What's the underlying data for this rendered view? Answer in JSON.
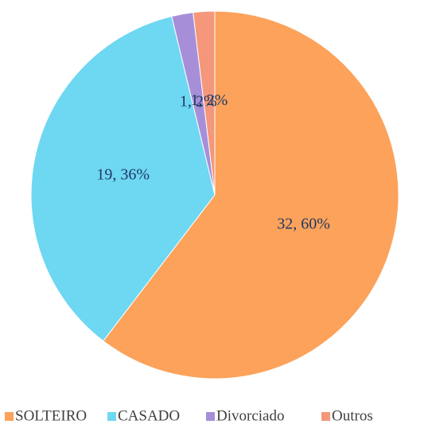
{
  "chart_data": {
    "type": "pie",
    "categories": [
      "SOLTEIRO",
      "CASADO",
      "Divorciado",
      "Outros"
    ],
    "values": [
      32,
      19,
      1,
      1
    ],
    "value_labels": [
      "32, 60%",
      "19, 36%",
      "1, 2%",
      "1, 2%"
    ],
    "colors": [
      "#fca25a",
      "#6ed7f2",
      "#a68fd8",
      "#f4977a"
    ],
    "legend": "bottom"
  }
}
